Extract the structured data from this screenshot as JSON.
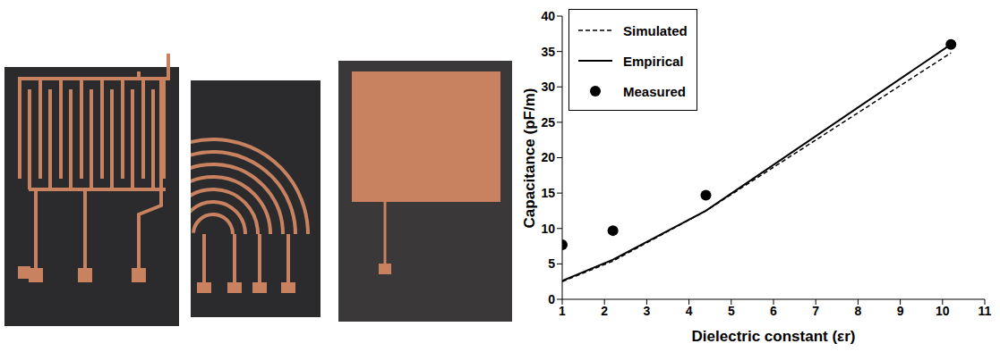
{
  "chart_data": {
    "type": "line",
    "x_label": "Dielectric constant (εr)",
    "y_label": "Capacitance (pF/m)",
    "x": [
      1,
      2.2,
      4.4,
      10.2
    ],
    "xlim": [
      1,
      11
    ],
    "xticks": [
      1,
      2,
      3,
      4,
      5,
      6,
      7,
      8,
      9,
      10,
      11
    ],
    "ylim": [
      0,
      40
    ],
    "yticks": [
      0,
      5,
      10,
      15,
      20,
      25,
      30,
      35,
      40
    ],
    "grid": false,
    "legend": "upper left",
    "series": [
      {
        "name": "Simulated",
        "type": "line",
        "line_style": "dashed",
        "color": "#000000",
        "values": [
          2.5,
          5.4,
          12.5,
          34.8
        ]
      },
      {
        "name": "Empirical",
        "type": "line",
        "line_style": "solid",
        "color": "#000000",
        "values": [
          2.6,
          5.6,
          12.5,
          36
        ]
      },
      {
        "name": "Measured",
        "type": "scatter",
        "marker": "circle",
        "color": "#000000",
        "values": [
          7.7,
          9.7,
          14.7,
          36
        ]
      }
    ]
  }
}
